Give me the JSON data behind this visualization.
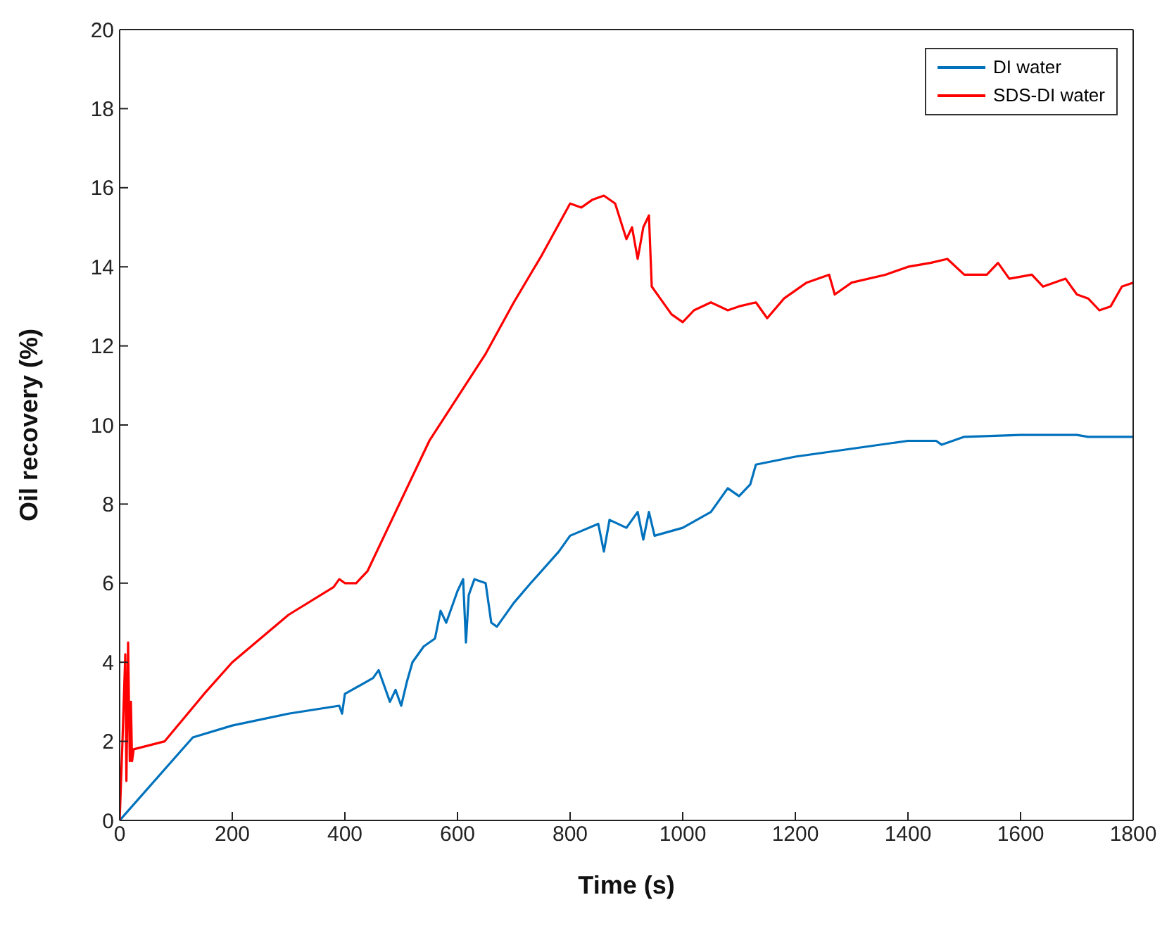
{
  "chart_data": {
    "type": "line",
    "xlabel": "Time (s)",
    "ylabel": "Oil recovery (%)",
    "xlim": [
      0,
      1800
    ],
    "xticks": [
      0,
      200,
      400,
      600,
      800,
      1000,
      1200,
      1400,
      1600,
      1800
    ],
    "ylim": [
      0,
      20
    ],
    "yticks": [
      0,
      2,
      4,
      6,
      8,
      10,
      12,
      14,
      16,
      18,
      20
    ],
    "legend": "top right",
    "marker": "none",
    "line_style": "solid",
    "series": [
      {
        "name": "DI water",
        "color": "#0072bd",
        "x": [
          0,
          130,
          200,
          300,
          390,
          395,
          400,
          450,
          460,
          480,
          490,
          500,
          510,
          520,
          540,
          560,
          570,
          580,
          600,
          610,
          615,
          620,
          630,
          650,
          660,
          670,
          700,
          730,
          780,
          800,
          850,
          860,
          870,
          900,
          920,
          930,
          940,
          950,
          1000,
          1050,
          1080,
          1100,
          1120,
          1130,
          1200,
          1300,
          1400,
          1450,
          1460,
          1500,
          1600,
          1700,
          1720,
          1800
        ],
        "values": [
          0,
          2.1,
          2.4,
          2.7,
          2.9,
          2.7,
          3.2,
          3.6,
          3.8,
          3.0,
          3.3,
          2.9,
          3.5,
          4.0,
          4.4,
          4.6,
          5.3,
          5.0,
          5.8,
          6.1,
          4.5,
          5.7,
          6.1,
          6.0,
          5.0,
          4.9,
          5.5,
          6.0,
          6.8,
          7.2,
          7.5,
          6.8,
          7.6,
          7.4,
          7.8,
          7.1,
          7.8,
          7.2,
          7.4,
          7.8,
          8.4,
          8.2,
          8.5,
          9.0,
          9.2,
          9.4,
          9.6,
          9.6,
          9.5,
          9.7,
          9.75,
          9.75,
          9.7,
          9.7
        ]
      },
      {
        "name": "SDS-DI water",
        "color": "#ff0000",
        "x": [
          0,
          5,
          10,
          12,
          15,
          18,
          20,
          22,
          25,
          80,
          150,
          200,
          300,
          380,
          390,
          400,
          420,
          440,
          500,
          550,
          600,
          650,
          700,
          750,
          800,
          820,
          840,
          860,
          880,
          900,
          910,
          920,
          930,
          940,
          945,
          960,
          980,
          1000,
          1020,
          1050,
          1080,
          1100,
          1130,
          1150,
          1180,
          1220,
          1260,
          1270,
          1300,
          1360,
          1400,
          1440,
          1470,
          1500,
          1540,
          1560,
          1580,
          1620,
          1640,
          1680,
          1700,
          1720,
          1740,
          1760,
          1780,
          1800
        ],
        "values": [
          0,
          2,
          4.2,
          1.0,
          4.5,
          1.5,
          3.0,
          1.5,
          1.8,
          2.0,
          3.2,
          4.0,
          5.2,
          5.9,
          6.1,
          6.0,
          6.0,
          6.3,
          8.1,
          9.6,
          10.7,
          11.8,
          13.1,
          14.3,
          15.6,
          15.5,
          15.7,
          15.8,
          15.6,
          14.7,
          15.0,
          14.2,
          15.0,
          15.3,
          13.5,
          13.2,
          12.8,
          12.6,
          12.9,
          13.1,
          12.9,
          13.0,
          13.1,
          12.7,
          13.2,
          13.6,
          13.8,
          13.3,
          13.6,
          13.8,
          14.0,
          14.1,
          14.2,
          13.8,
          13.8,
          14.1,
          13.7,
          13.8,
          13.5,
          13.7,
          13.3,
          13.2,
          12.9,
          13.0,
          13.5,
          13.6
        ]
      }
    ]
  }
}
